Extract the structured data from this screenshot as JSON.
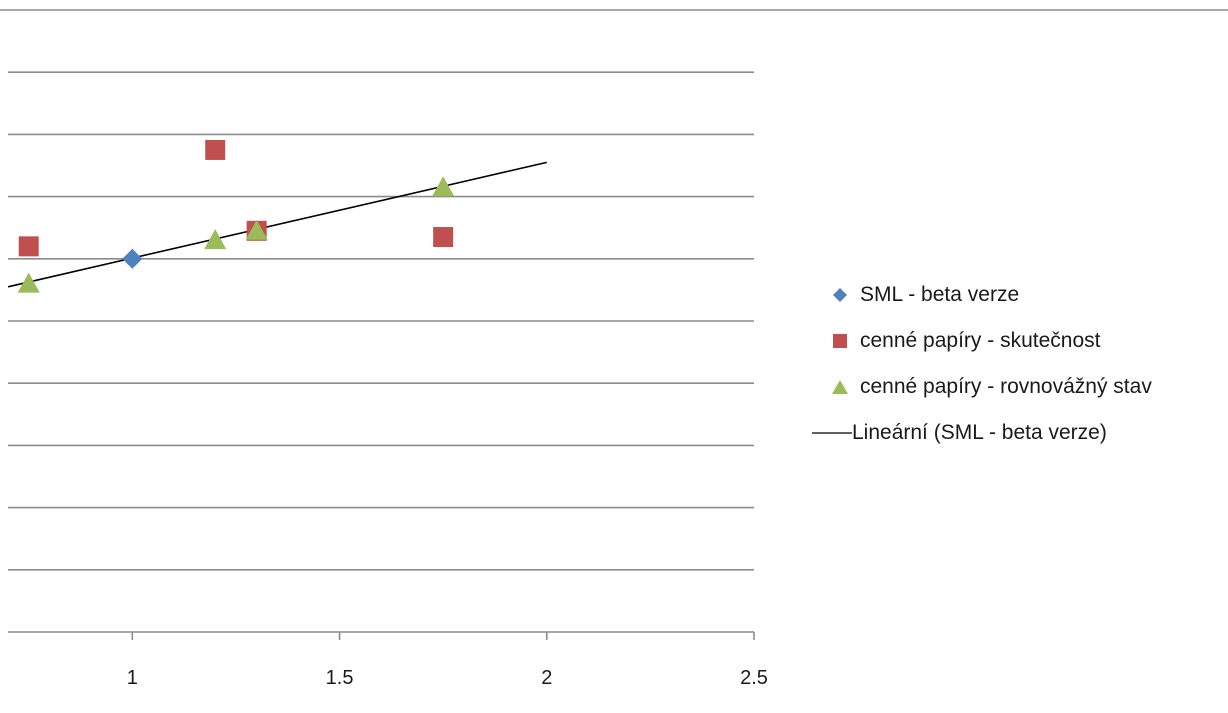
{
  "chart_data": {
    "type": "scatter",
    "title": "",
    "xlabel": "",
    "ylabel": "",
    "xlim": [
      0.7,
      2.5
    ],
    "ylim": [
      -0.06,
      0.14
    ],
    "x_ticks": [
      "1",
      "1.5",
      "2",
      "2.5"
    ],
    "y_gridlines": [
      -0.06,
      -0.04,
      -0.02,
      0,
      0.02,
      0.04,
      0.06,
      0.08,
      0.1,
      0.12,
      0.14
    ],
    "grid": true,
    "legend_position": "right",
    "series": [
      {
        "name": "SML - beta verze",
        "marker": "diamond",
        "color": "#4f81bd",
        "points": [
          {
            "x": 1.0,
            "y": 0.06
          }
        ]
      },
      {
        "name": "cenné papíry - skutečnost",
        "marker": "square",
        "color": "#c0504d",
        "points": [
          {
            "x": 0.75,
            "y": 0.064
          },
          {
            "x": 1.2,
            "y": 0.095
          },
          {
            "x": 1.3,
            "y": 0.069
          },
          {
            "x": 1.75,
            "y": 0.067
          }
        ]
      },
      {
        "name": "cenné papíry - rovnovážný stav",
        "marker": "triangle",
        "color": "#9bbb59",
        "points": [
          {
            "x": 0.75,
            "y": 0.052
          },
          {
            "x": 1.2,
            "y": 0.066
          },
          {
            "x": 1.3,
            "y": 0.069
          },
          {
            "x": 1.75,
            "y": 0.083
          }
        ]
      }
    ],
    "trendline": {
      "name": "Lineární (SML - beta verze)",
      "color": "#000000",
      "from": {
        "x": 0.7,
        "y": 0.051
      },
      "to": {
        "x": 2.0,
        "y": 0.091
      }
    }
  }
}
